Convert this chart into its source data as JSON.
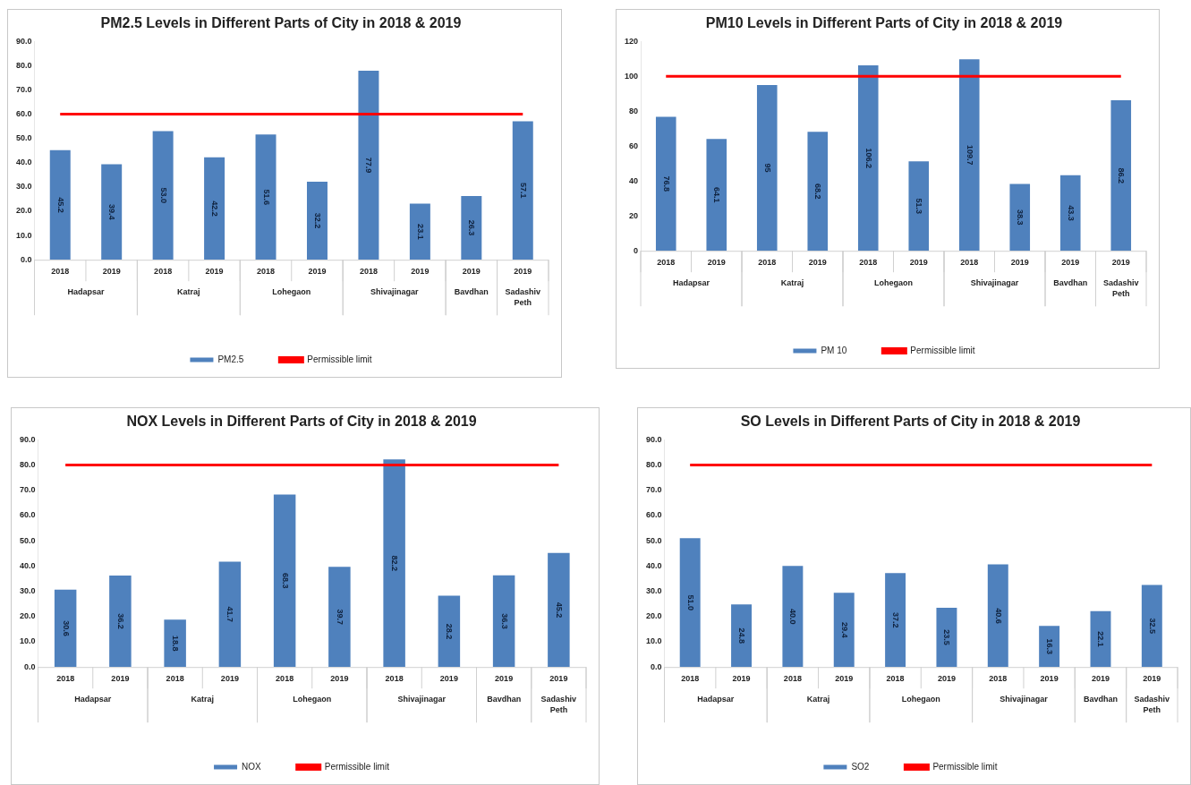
{
  "chart_data": [
    {
      "type": "bar",
      "title": "PM2.5 Levels in Different Parts of City in 2018 & 2019",
      "categories": [
        "2018",
        "2019",
        "2018",
        "2019",
        "2018",
        "2019",
        "2018",
        "2019",
        "2019",
        "2019"
      ],
      "series": [
        {
          "name": "PM2.5",
          "color": "#4f81bd",
          "values": [
            45.2,
            39.4,
            53.0,
            42.2,
            51.6,
            32.2,
            77.9,
            23.1,
            26.3,
            57.1
          ],
          "value_labels": [
            "45.2",
            "39.4",
            "53.0",
            "42.2",
            "51.6",
            "32.2",
            "77.9",
            "23.1",
            "26.3",
            "57.1"
          ]
        }
      ],
      "ref_lines": [
        {
          "axis": "y",
          "value": 60,
          "label": "Permissible limit",
          "color": "#ff0000"
        }
      ],
      "ylim": [
        0,
        90
      ],
      "yticks": [
        {
          "value": 0,
          "label": "0.0"
        },
        {
          "value": 10,
          "label": "10.0"
        },
        {
          "value": 20,
          "label": "20.0"
        },
        {
          "value": 30,
          "label": "30.0"
        },
        {
          "value": 40,
          "label": "40.0"
        },
        {
          "value": 50,
          "label": "50.0"
        },
        {
          "value": 60,
          "label": "60.0"
        },
        {
          "value": 70,
          "label": "70.0"
        },
        {
          "value": 80,
          "label": "80.0"
        },
        {
          "value": 90,
          "label": "90.0"
        }
      ],
      "annotations": [
        "Hadapsar",
        "Katraj",
        "Lohegaon",
        "Shivajinagar",
        "Bavdhan",
        "Sadashiv Peth"
      ],
      "grid": false,
      "legend": "bottom"
    },
    {
      "type": "bar",
      "title": "PM10 Levels in Different Parts of City in 2018 & 2019",
      "categories": [
        "2018",
        "2019",
        "2018",
        "2019",
        "2018",
        "2019",
        "2018",
        "2019",
        "2019",
        "2019"
      ],
      "series": [
        {
          "name": "PM 10",
          "color": "#4f81bd",
          "values": [
            76.8,
            64.1,
            95,
            68.2,
            106.2,
            51.3,
            109.7,
            38.3,
            43.3,
            86.2
          ],
          "value_labels": [
            "76.8",
            "64.1",
            "95",
            "68.2",
            "106.2",
            "51.3",
            "109.7",
            "38.3",
            "43.3",
            "86.2"
          ]
        }
      ],
      "ref_lines": [
        {
          "axis": "y",
          "value": 100,
          "label": "Permissible limit",
          "color": "#ff0000"
        }
      ],
      "ylim": [
        0,
        120
      ],
      "yticks": [
        0,
        20,
        40,
        60,
        80,
        100,
        120
      ],
      "annotations": [
        "Hadapsar",
        "Katraj",
        "Lohegaon",
        "Shivajinagar",
        "Bavdhan",
        "Sadashiv Peth"
      ],
      "grid": false,
      "legend": "bottom"
    },
    {
      "type": "bar",
      "title": "NOX Levels in Different Parts of City in 2018 & 2019",
      "categories": [
        "2018",
        "2019",
        "2018",
        "2019",
        "2018",
        "2019",
        "2018",
        "2019",
        "2019",
        "2019"
      ],
      "series": [
        {
          "name": "NOX",
          "color": "#4f81bd",
          "values": [
            30.6,
            36.2,
            18.8,
            41.7,
            68.3,
            39.7,
            82.2,
            28.2,
            36.3,
            45.2
          ],
          "value_labels": [
            "30.6",
            "36.2",
            "18.8",
            "41.7",
            "68.3",
            "39.7",
            "82.2",
            "28.2",
            "36.3",
            "45.2"
          ]
        }
      ],
      "ref_lines": [
        {
          "axis": "y",
          "value": 80,
          "label": "Permissible limit",
          "color": "#ff0000"
        }
      ],
      "ylim": [
        0,
        90
      ],
      "yticks": [
        {
          "value": 0,
          "label": "0.0"
        },
        {
          "value": 10,
          "label": "10.0"
        },
        {
          "value": 20,
          "label": "20.0"
        },
        {
          "value": 30,
          "label": "30.0"
        },
        {
          "value": 40,
          "label": "40.0"
        },
        {
          "value": 50,
          "label": "50.0"
        },
        {
          "value": 60,
          "label": "60.0"
        },
        {
          "value": 70,
          "label": "70.0"
        },
        {
          "value": 80,
          "label": "80.0"
        },
        {
          "value": 90,
          "label": "90.0"
        }
      ],
      "annotations": [
        "Hadapsar",
        "Katraj",
        "Lohegaon",
        "Shivajinagar",
        "Bavdhan",
        "Sadashiv Peth"
      ],
      "grid": false,
      "legend": "bottom"
    },
    {
      "type": "bar",
      "title": "SO Levels in Different Parts of City in 2018 & 2019",
      "categories": [
        "2018",
        "2019",
        "2018",
        "2019",
        "2018",
        "2019",
        "2018",
        "2019",
        "2019",
        "2019"
      ],
      "series": [
        {
          "name": "SO2",
          "color": "#4f81bd",
          "values": [
            51.0,
            24.8,
            40.0,
            29.4,
            37.2,
            23.5,
            40.6,
            16.3,
            22.1,
            32.5
          ],
          "value_labels": [
            "51.0",
            "24.8",
            "40.0",
            "29.4",
            "37.2",
            "23.5",
            "40.6",
            "16.3",
            "22.1",
            "32.5"
          ]
        }
      ],
      "ref_lines": [
        {
          "axis": "y",
          "value": 80,
          "label": "Permissible limit",
          "color": "#ff0000"
        }
      ],
      "ylim": [
        0,
        90
      ],
      "yticks": [
        {
          "value": 0,
          "label": "0.0"
        },
        {
          "value": 10,
          "label": "10.0"
        },
        {
          "value": 20,
          "label": "20.0"
        },
        {
          "value": 30,
          "label": "30.0"
        },
        {
          "value": 40,
          "label": "40.0"
        },
        {
          "value": 50,
          "label": "50.0"
        },
        {
          "value": 60,
          "label": "60.0"
        },
        {
          "value": 70,
          "label": "70.0"
        },
        {
          "value": 80,
          "label": "80.0"
        },
        {
          "value": 90,
          "label": "90.0"
        }
      ],
      "annotations": [
        "Hadapsar",
        "Katraj",
        "Lohegaon",
        "Shivajinagar",
        "Bavdhan",
        "Sadashiv Peth"
      ],
      "grid": false,
      "legend": "bottom"
    }
  ]
}
